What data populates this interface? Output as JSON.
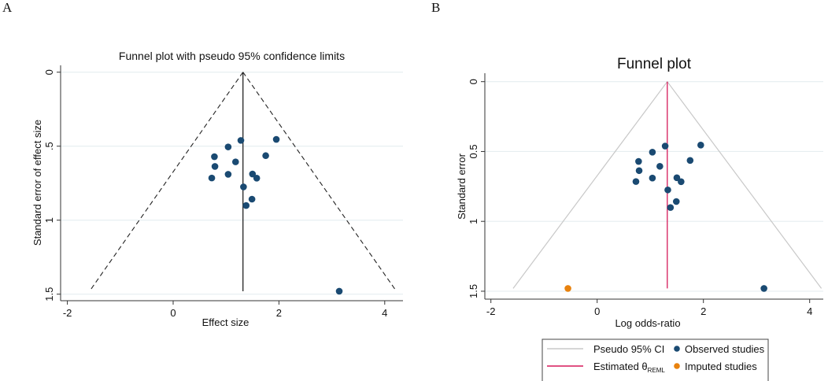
{
  "panels": {
    "a_label": "A",
    "b_label": "B"
  },
  "colors": {
    "observed": "#1a4a72",
    "imputed": "#e8820e",
    "theta_b": "#d6195a",
    "ci_b": "#c8c8c8",
    "ci_a": "#222222",
    "grid": "#e6eef0"
  },
  "chart_data": [
    {
      "type": "scatter",
      "title": "Funnel plot with pseudo 95% confidence limits",
      "xlabel": "Effect size",
      "ylabel": "Standard error of effect size",
      "xlim": [
        -2.2,
        4.2
      ],
      "ylim": [
        1.55,
        -0.04
      ],
      "x_ticks": [
        {
          "v": -2,
          "label": "-2"
        },
        {
          "v": 0,
          "label": "0"
        },
        {
          "v": 2,
          "label": "2"
        },
        {
          "v": 4,
          "label": "4"
        }
      ],
      "y_ticks": [
        {
          "v": 0,
          "label": "0"
        },
        {
          "v": 0.5,
          "label": ".5"
        },
        {
          "v": 1,
          "label": "1"
        },
        {
          "v": 1.5,
          "label": "1.5"
        }
      ],
      "y_reversed": true,
      "theta": 1.32,
      "ci_se_max": 1.48,
      "ci_style": "dashed",
      "observed": [
        {
          "x": 1.28,
          "se": 0.461
        },
        {
          "x": 1.95,
          "se": 0.454
        },
        {
          "x": 1.04,
          "se": 0.505
        },
        {
          "x": 1.75,
          "se": 0.564
        },
        {
          "x": 0.78,
          "se": 0.571
        },
        {
          "x": 1.18,
          "se": 0.606
        },
        {
          "x": 0.79,
          "se": 0.637
        },
        {
          "x": 1.04,
          "se": 0.69
        },
        {
          "x": 1.5,
          "se": 0.688
        },
        {
          "x": 0.73,
          "se": 0.715
        },
        {
          "x": 1.58,
          "se": 0.716
        },
        {
          "x": 1.33,
          "se": 0.775
        },
        {
          "x": 1.49,
          "se": 0.858
        },
        {
          "x": 1.38,
          "se": 0.901
        },
        {
          "x": 3.14,
          "se": 1.48
        }
      ],
      "imputed": []
    },
    {
      "type": "scatter",
      "title": "Funnel plot",
      "xlabel": "Log odds-ratio",
      "ylabel": "Standard error",
      "xlim": [
        -2.2,
        4.2
      ],
      "ylim": [
        1.55,
        -0.04
      ],
      "x_ticks": [
        {
          "v": -2,
          "label": "-2"
        },
        {
          "v": 0,
          "label": "0"
        },
        {
          "v": 2,
          "label": "2"
        },
        {
          "v": 4,
          "label": "4"
        }
      ],
      "y_ticks": [
        {
          "v": 0,
          "label": "0"
        },
        {
          "v": 0.5,
          "label": "0.5"
        },
        {
          "v": 1,
          "label": "1"
        },
        {
          "v": 1.5,
          "label": "1.5"
        }
      ],
      "y_reversed": true,
      "theta": 1.32,
      "ci_se_max": 1.48,
      "ci_style": "solid",
      "observed": [
        {
          "x": 1.28,
          "se": 0.461
        },
        {
          "x": 1.95,
          "se": 0.454
        },
        {
          "x": 1.04,
          "se": 0.505
        },
        {
          "x": 1.75,
          "se": 0.564
        },
        {
          "x": 0.78,
          "se": 0.571
        },
        {
          "x": 1.18,
          "se": 0.606
        },
        {
          "x": 0.79,
          "se": 0.637
        },
        {
          "x": 1.04,
          "se": 0.69
        },
        {
          "x": 1.5,
          "se": 0.688
        },
        {
          "x": 0.73,
          "se": 0.715
        },
        {
          "x": 1.58,
          "se": 0.716
        },
        {
          "x": 1.33,
          "se": 0.775
        },
        {
          "x": 1.49,
          "se": 0.858
        },
        {
          "x": 1.38,
          "se": 0.901
        },
        {
          "x": 3.14,
          "se": 1.48
        }
      ],
      "imputed": [
        {
          "x": -0.55,
          "se": 1.48
        }
      ],
      "legend": {
        "position": "bottom",
        "entries": [
          {
            "label": "Pseudo 95% CI",
            "kind": "line"
          },
          {
            "label": "Observed studies",
            "kind": "marker"
          },
          {
            "label": "Estimated θ",
            "subscript": "REML",
            "kind": "line"
          },
          {
            "label": "Imputed studies",
            "kind": "marker"
          }
        ]
      }
    }
  ]
}
